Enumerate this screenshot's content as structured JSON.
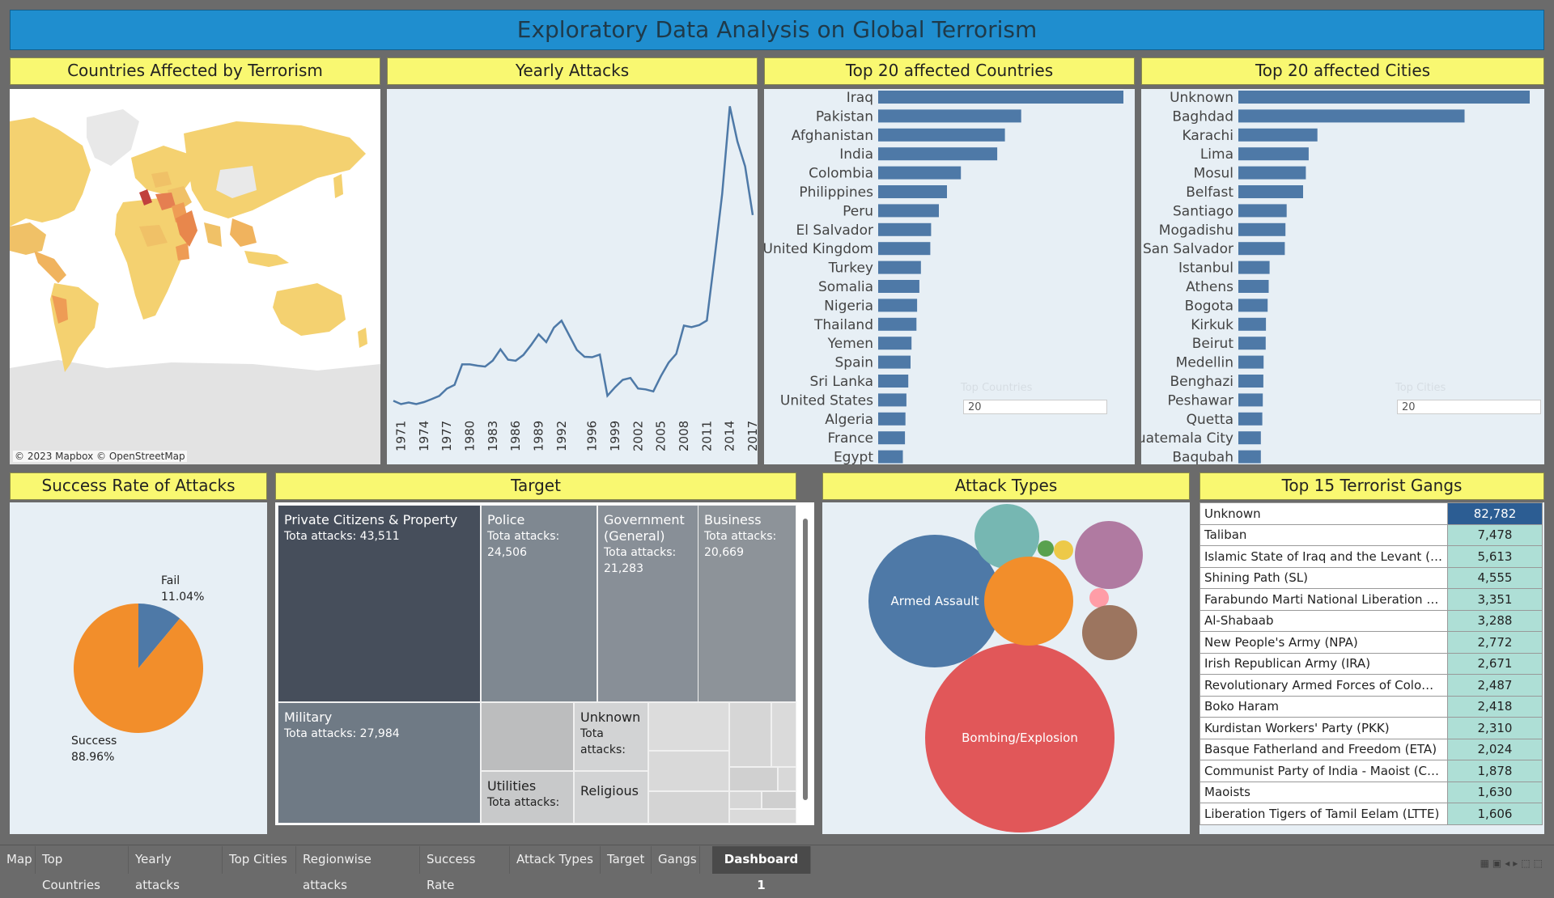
{
  "title": "Exploratory Data Analysis on Global Terrorism",
  "panels": {
    "map": "Countries Affected by Terrorism",
    "yearly": "Yearly Attacks",
    "countries": "Top 20 affected Countries",
    "cities": "Top 20 affected Cities",
    "success": "Success Rate of Attacks",
    "target": "Target",
    "attack_types": "Attack Types",
    "gangs": "Top 15 Terrorist Gangs"
  },
  "map_attribution": "© 2023 Mapbox © OpenStreetMap",
  "filters": {
    "countries": {
      "title": "Top Countries",
      "value": "20"
    },
    "cities": {
      "title": "Top Cities",
      "value": "20"
    }
  },
  "colors": {
    "title_bar": "#1f8ecf",
    "header": "#f9f871",
    "bar": "#4e79a7",
    "panel": "#e7eff5"
  },
  "chart_data": [
    {
      "type": "line",
      "x_ticks": [
        "1971",
        "1974",
        "1977",
        "1980",
        "1983",
        "1986",
        "1989",
        "1992",
        "1996",
        "1999",
        "2002",
        "2005",
        "2008",
        "2011",
        "2014",
        "2017"
      ],
      "x": [
        1970,
        1971,
        1972,
        1973,
        1974,
        1975,
        1976,
        1977,
        1978,
        1979,
        1980,
        1981,
        1982,
        1983,
        1984,
        1985,
        1986,
        1987,
        1988,
        1989,
        1990,
        1991,
        1992,
        1994,
        1995,
        1996,
        1997,
        1998,
        1999,
        2000,
        2001,
        2002,
        2003,
        2004,
        2005,
        2006,
        2007,
        2008,
        2009,
        2010,
        2011,
        2012,
        2013,
        2014,
        2015,
        2016,
        2017
      ],
      "y": [
        650,
        470,
        560,
        470,
        580,
        740,
        920,
        1320,
        1530,
        2660,
        2660,
        2590,
        2540,
        2870,
        3490,
        2920,
        2860,
        3180,
        3720,
        4320,
        3890,
        4690,
        5070,
        3460,
        3080,
        3060,
        3200,
        930,
        1400,
        1810,
        1910,
        1330,
        1280,
        1170,
        2020,
        2760,
        3240,
        4800,
        4720,
        4830,
        5080,
        8500,
        12040,
        16900,
        14960,
        13590,
        10900
      ],
      "ylim": [
        0,
        17500
      ]
    },
    {
      "type": "bar",
      "categories": [
        "Iraq",
        "Pakistan",
        "Afghanistan",
        "India",
        "Colombia",
        "Philippines",
        "Peru",
        "El Salvador",
        "United Kingdom",
        "Turkey",
        "Somalia",
        "Nigeria",
        "Thailand",
        "Yemen",
        "Spain",
        "Sri Lanka",
        "United States",
        "Algeria",
        "France",
        "Egypt"
      ],
      "values": [
        24636,
        14368,
        12731,
        11960,
        8306,
        6908,
        6096,
        5320,
        5235,
        4292,
        4142,
        3907,
        3849,
        3347,
        3249,
        3022,
        2836,
        2743,
        2693,
        2479
      ]
    },
    {
      "type": "bar",
      "categories": [
        "Unknown",
        "Baghdad",
        "Karachi",
        "Lima",
        "Mosul",
        "Belfast",
        "Santiago",
        "Mogadishu",
        "San Salvador",
        "Istanbul",
        "Athens",
        "Bogota",
        "Kirkuk",
        "Beirut",
        "Medellin",
        "Benghazi",
        "Peshawar",
        "Quetta",
        "Guatemala City",
        "Baqubah"
      ],
      "values": [
        9775,
        7589,
        2652,
        2359,
        2265,
        2171,
        1621,
        1581,
        1558,
        1048,
        1019,
        984,
        925,
        918,
        848,
        840,
        819,
        803,
        756,
        755
      ]
    },
    {
      "type": "pie",
      "labels": [
        "Fail",
        "Success"
      ],
      "percent_labels": [
        "11.04%",
        "88.96%"
      ],
      "values": [
        11.04,
        88.96
      ],
      "colors": [
        "#4e79a7",
        "#f28e2b"
      ]
    }
  ],
  "target": {
    "tiles": [
      {
        "name": "Private Citizens & Property",
        "label": "Tota attacks: 43,511"
      },
      {
        "name": "Police",
        "label": "Tota attacks:",
        "value": "24,506"
      },
      {
        "name": "Government (General)",
        "label": "Tota attacks:",
        "value": "21,283"
      },
      {
        "name": "Business",
        "label": "Tota attacks:",
        "value": "20,669"
      },
      {
        "name": "Military",
        "label": "Tota attacks: 27,984"
      },
      {
        "name": "Unknown",
        "label": "Tota",
        "label2": "attacks:"
      },
      {
        "name": "Utilities",
        "label": "Tota attacks:"
      },
      {
        "name": "Religious"
      }
    ]
  },
  "attack_types": {
    "bubbles": [
      {
        "label": "Armed Assault",
        "color": "#4e79a7"
      },
      {
        "label": "Bombing/Explosion",
        "color": "#e15759"
      },
      {
        "label": "",
        "color": "#76b7b2"
      },
      {
        "label": "",
        "color": "#59a14f"
      },
      {
        "label": "",
        "color": "#edc948"
      },
      {
        "label": "",
        "color": "#b07aa1"
      },
      {
        "label": "",
        "color": "#f28e2b"
      },
      {
        "label": "",
        "color": "#ff9da7"
      },
      {
        "label": "",
        "color": "#9c755f"
      }
    ]
  },
  "gangs": [
    {
      "name": "Unknown",
      "value": "82,782"
    },
    {
      "name": "Taliban",
      "value": "7,478"
    },
    {
      "name": "Islamic State of Iraq and the Levant (ISIL)",
      "value": "5,613"
    },
    {
      "name": "Shining Path (SL)",
      "value": "4,555"
    },
    {
      "name": "Farabundo Marti National Liberation Fro..",
      "value": "3,351"
    },
    {
      "name": "Al-Shabaab",
      "value": "3,288"
    },
    {
      "name": "New People's Army (NPA)",
      "value": "2,772"
    },
    {
      "name": "Irish Republican Army (IRA)",
      "value": "2,671"
    },
    {
      "name": "Revolutionary Armed Forces of Colombia ..",
      "value": "2,487"
    },
    {
      "name": "Boko Haram",
      "value": "2,418"
    },
    {
      "name": "Kurdistan Workers' Party (PKK)",
      "value": "2,310"
    },
    {
      "name": "Basque Fatherland and Freedom (ETA)",
      "value": "2,024"
    },
    {
      "name": "Communist Party of India - Maoist (CPI-M..",
      "value": "1,878"
    },
    {
      "name": "Maoists",
      "value": "1,630"
    },
    {
      "name": "Liberation Tigers of Tamil Eelam (LTTE)",
      "value": "1,606"
    }
  ],
  "tabs": [
    "Map",
    "Top Countries",
    "Yearly attacks",
    "Top Cities",
    "Regionwise attacks",
    "Success Rate",
    "Attack Types",
    "Target",
    "Gangs",
    "Dashboard 1"
  ]
}
